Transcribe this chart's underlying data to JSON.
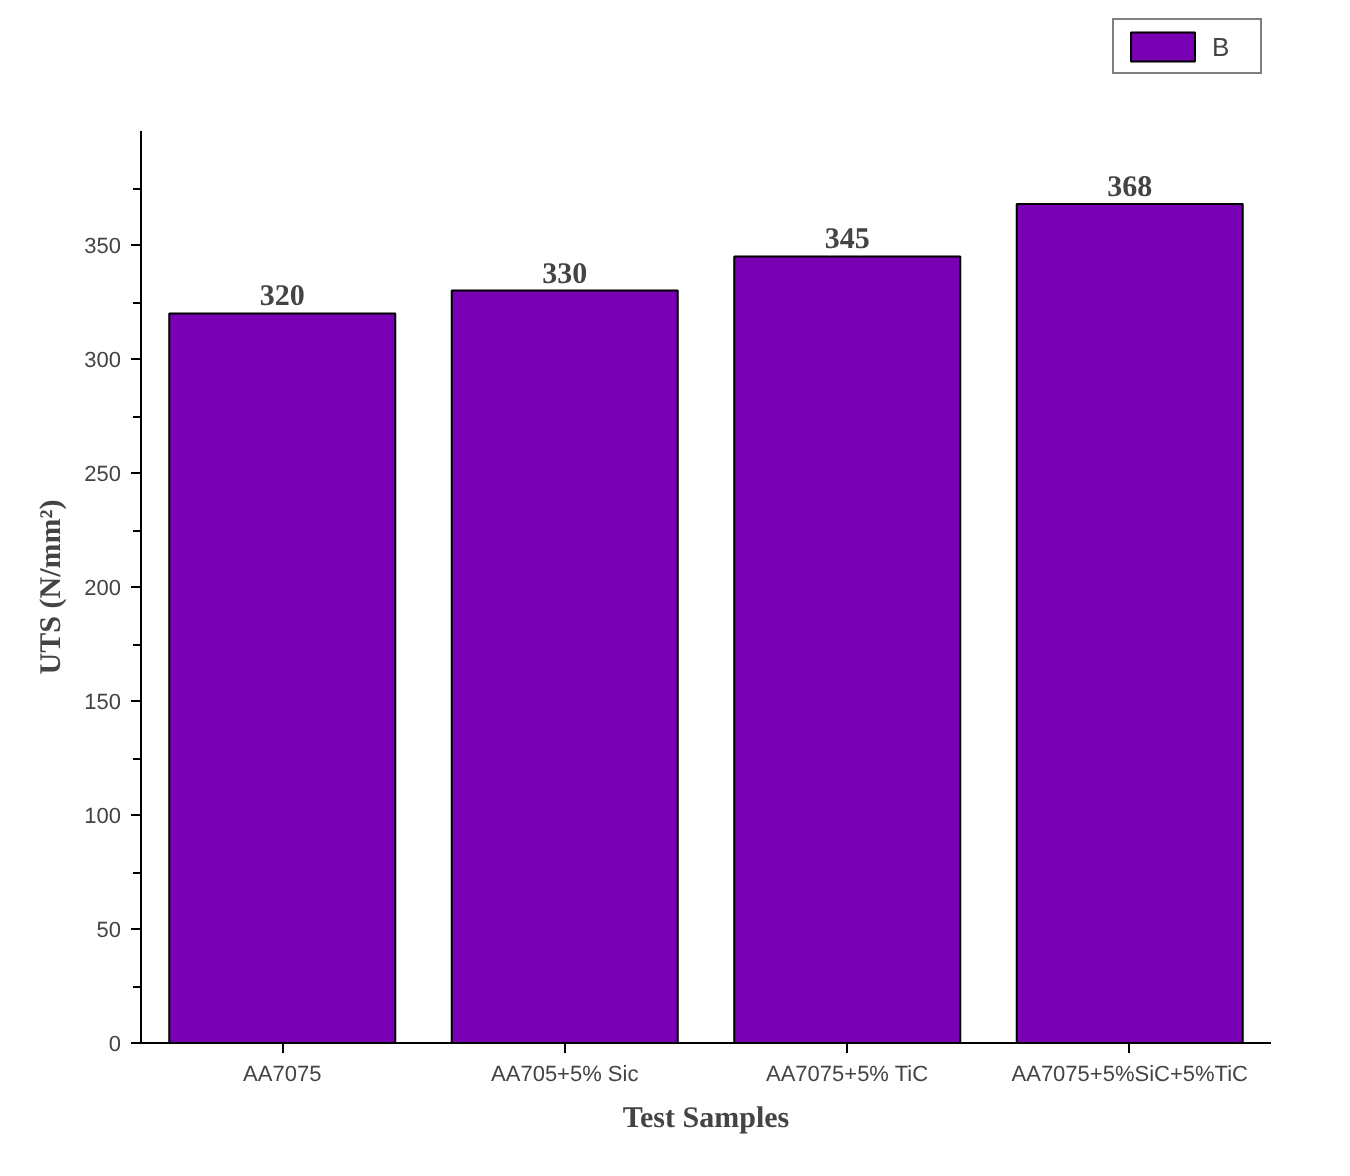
{
  "chart_data": {
    "type": "bar",
    "xlabel": "Test Samples",
    "ylabel": "UTS (N/mm²)",
    "categories": [
      "AA7075",
      "AA705+5% Sic",
      "AA7075+5% TiC",
      "AA7075+5%SiC+5%TiC"
    ],
    "series": [
      {
        "name": "B",
        "color": "#7a00b3",
        "values": [
          320,
          330,
          345,
          368
        ]
      }
    ],
    "ylim": [
      0,
      400
    ],
    "yticks": [
      0,
      50,
      100,
      150,
      200,
      250,
      300,
      350
    ],
    "data_labels": true,
    "grid": false,
    "legend": "top right"
  }
}
